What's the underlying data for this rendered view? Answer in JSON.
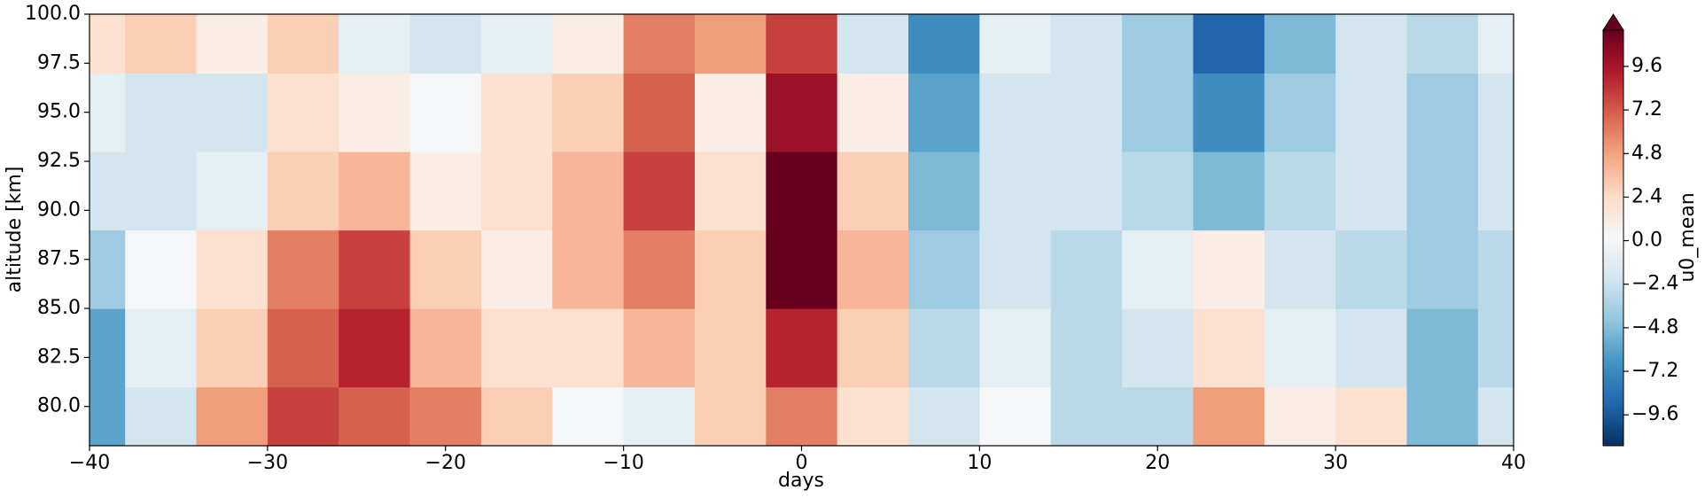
{
  "chart_data": {
    "type": "heatmap",
    "x": [
      -40,
      -36,
      -32,
      -28,
      -24,
      -20,
      -16,
      -12,
      -8,
      -4,
      0,
      4,
      8,
      12,
      16,
      20,
      24,
      28,
      32,
      36,
      40
    ],
    "y": [
      79,
      83,
      87,
      91,
      95,
      99
    ],
    "z": [
      [
        -6,
        -2,
        5,
        8,
        7,
        6,
        3,
        0,
        -1,
        3,
        6,
        2,
        -2,
        0,
        -3,
        -3,
        5,
        1,
        2,
        -5,
        -2
      ],
      [
        -6,
        -1,
        3,
        7,
        9,
        4,
        2,
        2,
        4,
        3,
        9,
        3,
        -3,
        -1,
        -3,
        -2,
        2,
        -1,
        -2,
        -5,
        -3
      ],
      [
        -4,
        0,
        2,
        6,
        8,
        3,
        1,
        4,
        6,
        3,
        12,
        4,
        -4,
        -2,
        -3,
        -1,
        1,
        -2,
        -3,
        -4,
        -3
      ],
      [
        -2,
        -2,
        -1,
        3,
        4,
        1,
        2,
        4,
        8,
        2,
        12,
        3,
        -5,
        -2,
        -2,
        -3,
        -5,
        -3,
        -2,
        -4,
        -2
      ],
      [
        -1,
        -2,
        -2,
        2,
        1,
        0,
        2,
        3,
        7,
        1,
        10,
        1,
        -6,
        -2,
        -2,
        -4,
        -7,
        -4,
        -2,
        -4,
        -2
      ],
      [
        2,
        3,
        1,
        3,
        -1,
        -2,
        -1,
        1,
        6,
        5,
        8,
        -2,
        -7,
        -1,
        -2,
        -4,
        -9,
        -5,
        -2,
        -3,
        -1
      ]
    ],
    "xlim": [
      -40,
      40
    ],
    "ylim": [
      78,
      100
    ],
    "xticks": [
      {
        "value": -40,
        "label": "−40"
      },
      {
        "value": -30,
        "label": "−30"
      },
      {
        "value": -20,
        "label": "−20"
      },
      {
        "value": -10,
        "label": "−10"
      },
      0,
      10,
      20,
      30,
      40
    ],
    "yticks": [
      {
        "value": 80,
        "label": "80.0"
      },
      {
        "value": 82.5,
        "label": "82.5"
      },
      {
        "value": 85,
        "label": "85.0"
      },
      {
        "value": 87.5,
        "label": "87.5"
      },
      {
        "value": 90,
        "label": "90.0"
      },
      {
        "value": 92.5,
        "label": "92.5"
      },
      {
        "value": 95,
        "label": "95.0"
      },
      {
        "value": 97.5,
        "label": "97.5"
      },
      {
        "value": 100,
        "label": "100.0"
      }
    ],
    "xlabel": "days",
    "ylabel": "altitude [km]",
    "colorbar": {
      "label": "u0_mean",
      "clim": [
        -11.3,
        11.6
      ],
      "extend": "max",
      "ticks": [
        {
          "value": -9.6,
          "label": "−9.6"
        },
        {
          "value": -7.2,
          "label": "−7.2"
        },
        {
          "value": -4.8,
          "label": "−4.8"
        },
        {
          "value": -2.4,
          "label": "−2.4"
        },
        {
          "value": 0,
          "label": "0.0"
        },
        2.4,
        4.8,
        7.2,
        9.6
      ],
      "colormap": [
        "#053061",
        "#2166ac",
        "#4393c3",
        "#92c5de",
        "#d1e5f0",
        "#f7f7f7",
        "#fddbc7",
        "#f4a582",
        "#d6604d",
        "#b2182b",
        "#67001f"
      ]
    }
  }
}
